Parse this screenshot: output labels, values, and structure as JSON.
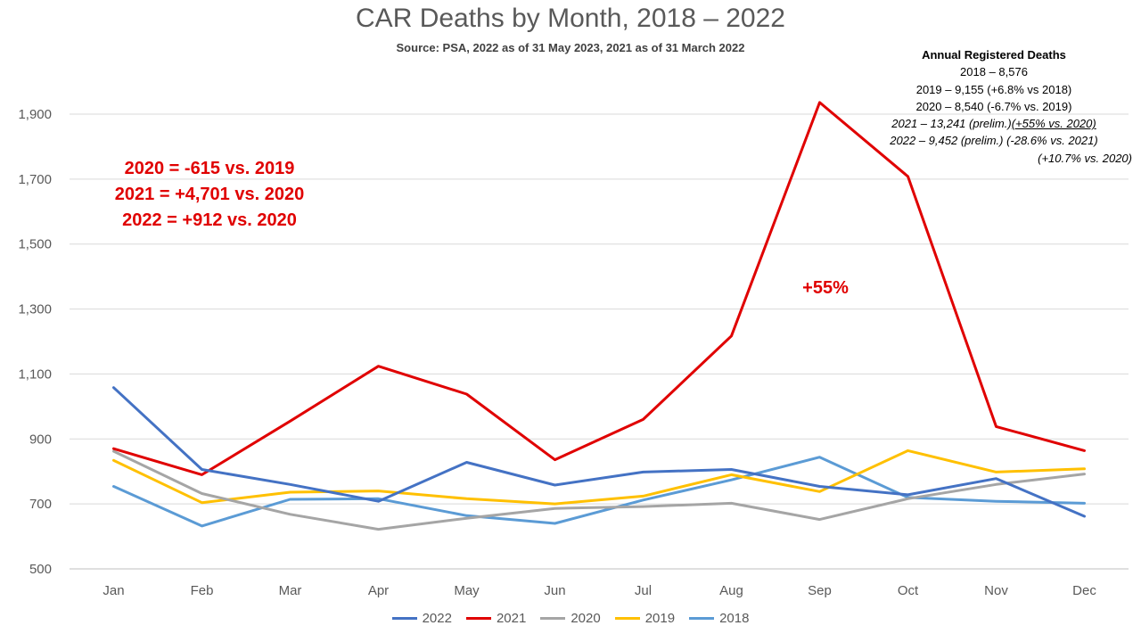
{
  "chart_data": {
    "type": "line",
    "title": "CAR Deaths by Month, 2018 – 2022",
    "subtitle": "Source: PSA, 2022 as of 31 May 2023, 2021 as of 31 March 2022",
    "categories": [
      "Jan",
      "Feb",
      "Mar",
      "Apr",
      "May",
      "Jun",
      "Jul",
      "Aug",
      "Sep",
      "Oct",
      "Nov",
      "Dec"
    ],
    "ylim": [
      500,
      1900
    ],
    "yticks": [
      500,
      700,
      900,
      1100,
      1300,
      1500,
      1700,
      1900
    ],
    "ytick_labels": [
      "500",
      "700",
      "900",
      "1,100",
      "1,300",
      "1,500",
      "1,700",
      "1,900"
    ],
    "grid": true,
    "legend_position": "bottom",
    "series": [
      {
        "name": "2022",
        "color": "#4472c4",
        "values": [
          1058,
          806,
          760,
          708,
          828,
          758,
          798,
          806,
          754,
          728,
          778,
          662
        ]
      },
      {
        "name": "2021",
        "color": "#e00000",
        "values": [
          870,
          790,
          955,
          1124,
          1038,
          836,
          960,
          1217,
          1936,
          1708,
          938,
          864
        ]
      },
      {
        "name": "2020",
        "color": "#a5a5a5",
        "values": [
          862,
          732,
          668,
          622,
          656,
          686,
          692,
          702,
          652,
          716,
          760,
          792
        ]
      },
      {
        "name": "2019",
        "color": "#ffc000",
        "values": [
          834,
          704,
          736,
          740,
          716,
          700,
          724,
          790,
          738,
          864,
          798,
          808
        ]
      },
      {
        "name": "2018",
        "color": "#5b9bd5",
        "values": [
          754,
          632,
          714,
          716,
          664,
          640,
          712,
          774,
          844,
          720,
          708,
          702
        ]
      }
    ]
  },
  "annotations": {
    "annual_header": "Annual Registered Deaths",
    "annual_2018": "2018 – 8,576",
    "annual_2019": "2019 – 9,155 (+6.8% vs 2018)",
    "annual_2020": "2020 – 8,540 (-6.7% vs. 2019)",
    "annual_2021_main": "2021 – 13,241 (prelim.)",
    "annual_2021_underlined": "(+55% vs. 2020)",
    "annual_2022": "2022 – 9,452 (prelim.) (-28.6% vs. 2021)",
    "annual_2022_b": "(+10.7% vs. 2020)",
    "callout_1": "2020 = -615 vs. 2019",
    "callout_2": "2021 = +4,701 vs. 2020",
    "callout_3": "2022 = +912 vs. 2020",
    "peak_label": "+55%"
  }
}
